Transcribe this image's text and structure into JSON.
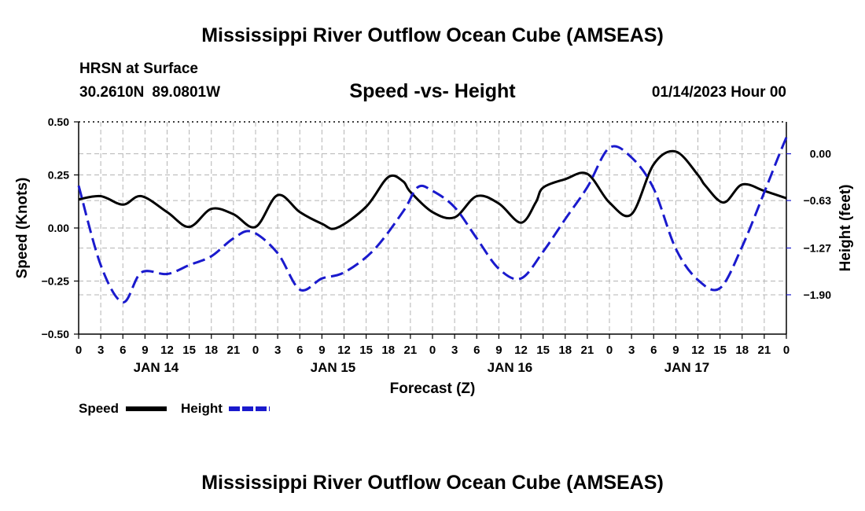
{
  "header": {
    "title": "Mississippi River Outflow Ocean Cube (AMSEAS)",
    "station": "HRSN at Surface",
    "lat": "30.2610N",
    "lon": "89.0801W",
    "subtitle": "Speed -vs- Height",
    "date": "01/14/2023 Hour 00"
  },
  "footer": {
    "title": "Mississippi River Outflow Ocean Cube (AMSEAS)"
  },
  "chart_data": {
    "type": "line",
    "title": "Speed -vs- Height",
    "xlabel": "Forecast (Z)",
    "ylabel": "Speed (Knots)",
    "y2label": "Height (feet)",
    "x_range_hours": [
      0,
      96
    ],
    "ylim": [
      -0.5,
      0.5
    ],
    "y2lim": [
      -2.43,
      0.43
    ],
    "x_tick_labels": [
      "0",
      "3",
      "6",
      "9",
      "12",
      "15",
      "18",
      "21",
      "0",
      "3",
      "6",
      "9",
      "12",
      "15",
      "18",
      "21",
      "0",
      "3",
      "6",
      "9",
      "12",
      "15",
      "18",
      "21",
      "0",
      "3",
      "6",
      "9",
      "12",
      "15",
      "18",
      "21",
      "0"
    ],
    "day_labels": [
      "JAN 14",
      "JAN 15",
      "JAN 16",
      "JAN 17"
    ],
    "y_ticks": [
      -0.5,
      -0.25,
      0.0,
      0.25,
      0.5
    ],
    "y_tick_labels": [
      "−0.50",
      "−0.25",
      "0.00",
      "0.25",
      "0.50"
    ],
    "y2_ticks": [
      0.0,
      -0.63,
      -1.27,
      -1.9
    ],
    "y2_tick_labels": [
      "0.00",
      "−0.63",
      "−1.27",
      "−1.90"
    ],
    "grid": true,
    "legend": {
      "speed": "Speed",
      "height": "Height"
    },
    "series": [
      {
        "name": "Speed",
        "axis": "left",
        "color": "#000000",
        "style": "solid",
        "x": [
          0,
          3,
          6,
          8.5,
          12,
          15,
          18,
          21,
          24,
          27,
          30,
          33,
          35,
          39,
          42,
          44,
          45,
          48,
          51,
          54,
          57,
          60,
          62,
          63,
          66,
          69,
          72,
          75,
          78,
          81,
          84,
          85,
          87.5,
          90,
          93,
          96
        ],
        "y": [
          0.135,
          0.15,
          0.11,
          0.15,
          0.075,
          0.005,
          0.09,
          0.065,
          0.005,
          0.155,
          0.075,
          0.02,
          0,
          0.1,
          0.24,
          0.22,
          0.17,
          0.075,
          0.05,
          0.15,
          0.115,
          0.025,
          0.12,
          0.19,
          0.23,
          0.255,
          0.12,
          0.065,
          0.3,
          0.36,
          0.25,
          0.2,
          0.12,
          0.205,
          0.175,
          0.14
        ]
      },
      {
        "name": "Height",
        "axis": "right",
        "color": "#1a1acd",
        "style": "dashed",
        "x": [
          0,
          3,
          6,
          8.5,
          12,
          15,
          18,
          21,
          23.5,
          27,
          30,
          33,
          36,
          40,
          44,
          46,
          48,
          51,
          54,
          57,
          60,
          63,
          66,
          69,
          72,
          75,
          78,
          81,
          84,
          87,
          90,
          93,
          95,
          96
        ],
        "y": [
          -0.43,
          -1.5,
          -2.0,
          -1.6,
          -1.62,
          -1.5,
          -1.38,
          -1.14,
          -1.05,
          -1.34,
          -1.83,
          -1.68,
          -1.6,
          -1.3,
          -0.78,
          -0.45,
          -0.5,
          -0.72,
          -1.14,
          -1.55,
          -1.68,
          -1.32,
          -0.88,
          -0.45,
          0.08,
          -0.05,
          -0.47,
          -1.28,
          -1.7,
          -1.81,
          -1.25,
          -0.52,
          -0.02,
          0.22
        ]
      }
    ]
  }
}
